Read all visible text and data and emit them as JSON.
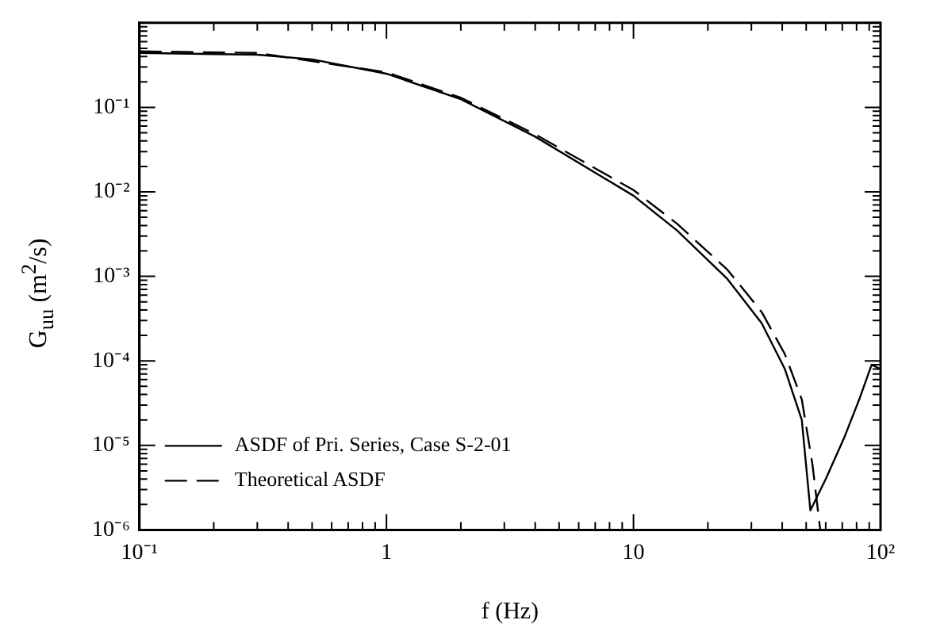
{
  "chart_data": {
    "type": "line",
    "xlabel": "f (Hz)",
    "ylabel": "G$_{uu}$ (m$^{2}$/s)",
    "log": "xy",
    "grid": false,
    "legend": "bottom left",
    "marker": "none",
    "xlim": [
      0.1,
      100
    ],
    "ylim": [
      1e-06,
      1
    ],
    "xticks": [
      {
        "value": 0.1,
        "label": "10⁻¹"
      },
      1,
      10,
      {
        "value": 100,
        "label": "10²"
      }
    ],
    "yticks": [
      {
        "value": 1e-06,
        "label": "10⁻⁶"
      },
      {
        "value": 1e-05,
        "label": "10⁻⁵"
      },
      {
        "value": 0.0001,
        "label": "10⁻⁴"
      },
      {
        "value": 0.001,
        "label": "10⁻³"
      },
      {
        "value": 0.01,
        "label": "10⁻²"
      },
      {
        "value": 0.1,
        "label": "10⁻¹"
      },
      {
        "value": 1,
        "label": null
      }
    ],
    "series": [
      {
        "name": "ASDF of Pri. Series, Case S-2-01",
        "color": "#000000",
        "line_style": "solid",
        "x": [
          0.1,
          0.3,
          0.5,
          1,
          2,
          4,
          10,
          15,
          24,
          33,
          41,
          48,
          52,
          60,
          71,
          82,
          92,
          100
        ],
        "values": [
          0.44,
          0.42,
          0.37,
          0.25,
          0.125,
          0.045,
          0.009,
          0.0035,
          0.00093,
          0.00028,
          8e-05,
          2e-05,
          1.7e-06,
          4e-06,
          1.2e-05,
          3.5e-05,
          9e-05,
          8e-05
        ]
      },
      {
        "name": "Theoretical ASDF",
        "color": "#000000",
        "line_style": "dashed",
        "x": [
          0.1,
          0.3,
          1,
          2,
          4,
          10,
          15,
          24,
          33,
          41,
          48,
          53,
          57
        ],
        "values": [
          0.46,
          0.44,
          0.26,
          0.13,
          0.048,
          0.0105,
          0.0042,
          0.0012,
          0.00038,
          0.00012,
          3.5e-05,
          6e-06,
          1e-06
        ]
      }
    ]
  }
}
